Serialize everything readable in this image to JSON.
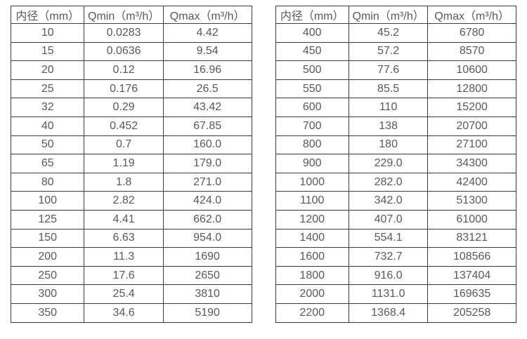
{
  "colors": {
    "border": "#3a3a3a",
    "text": "#595959",
    "background": "#ffffff"
  },
  "chart_data": [
    {
      "type": "table",
      "columns": [
        "内径（mm）",
        "Qmin（m³/h）",
        "Qmax（m³/h）"
      ],
      "rows": [
        [
          "10",
          "0.0283",
          "4.42"
        ],
        [
          "15",
          "0.0636",
          "9.54"
        ],
        [
          "20",
          "0.12",
          "16.96"
        ],
        [
          "25",
          "0.176",
          "26.5"
        ],
        [
          "32",
          "0.29",
          "43.42"
        ],
        [
          "40",
          "0.452",
          "67.85"
        ],
        [
          "50",
          "0.7",
          "160.0"
        ],
        [
          "65",
          "1.19",
          "179.0"
        ],
        [
          "80",
          "1.8",
          "271.0"
        ],
        [
          "100",
          "2.82",
          "424.0"
        ],
        [
          "125",
          "4.41",
          "662.0"
        ],
        [
          "150",
          "6.63",
          "954.0"
        ],
        [
          "200",
          "11.3",
          "1690"
        ],
        [
          "250",
          "17.6",
          "2650"
        ],
        [
          "300",
          "25.4",
          "3810"
        ],
        [
          "350",
          "34.6",
          "5190"
        ]
      ]
    },
    {
      "type": "table",
      "columns": [
        "内径（mm）",
        "Qmin（m³/h）",
        "Qmax（m³/h）"
      ],
      "rows": [
        [
          "400",
          "45.2",
          "6780"
        ],
        [
          "450",
          "57.2",
          "8570"
        ],
        [
          "500",
          "77.6",
          "10600"
        ],
        [
          "550",
          "85.5",
          "12800"
        ],
        [
          "600",
          "110",
          "15200"
        ],
        [
          "700",
          "138",
          "20700"
        ],
        [
          "800",
          "180",
          "27100"
        ],
        [
          "900",
          "229.0",
          "34300"
        ],
        [
          "1000",
          "282.0",
          "42400"
        ],
        [
          "1100",
          "342.0",
          "51300"
        ],
        [
          "1200",
          "407.0",
          "61000"
        ],
        [
          "1400",
          "554.1",
          "83121"
        ],
        [
          "1600",
          "732.7",
          "108566"
        ],
        [
          "1800",
          "916.0",
          "137404"
        ],
        [
          "2000",
          "1131.0",
          "169635"
        ],
        [
          "2200",
          "1368.4",
          "205258"
        ]
      ]
    }
  ]
}
